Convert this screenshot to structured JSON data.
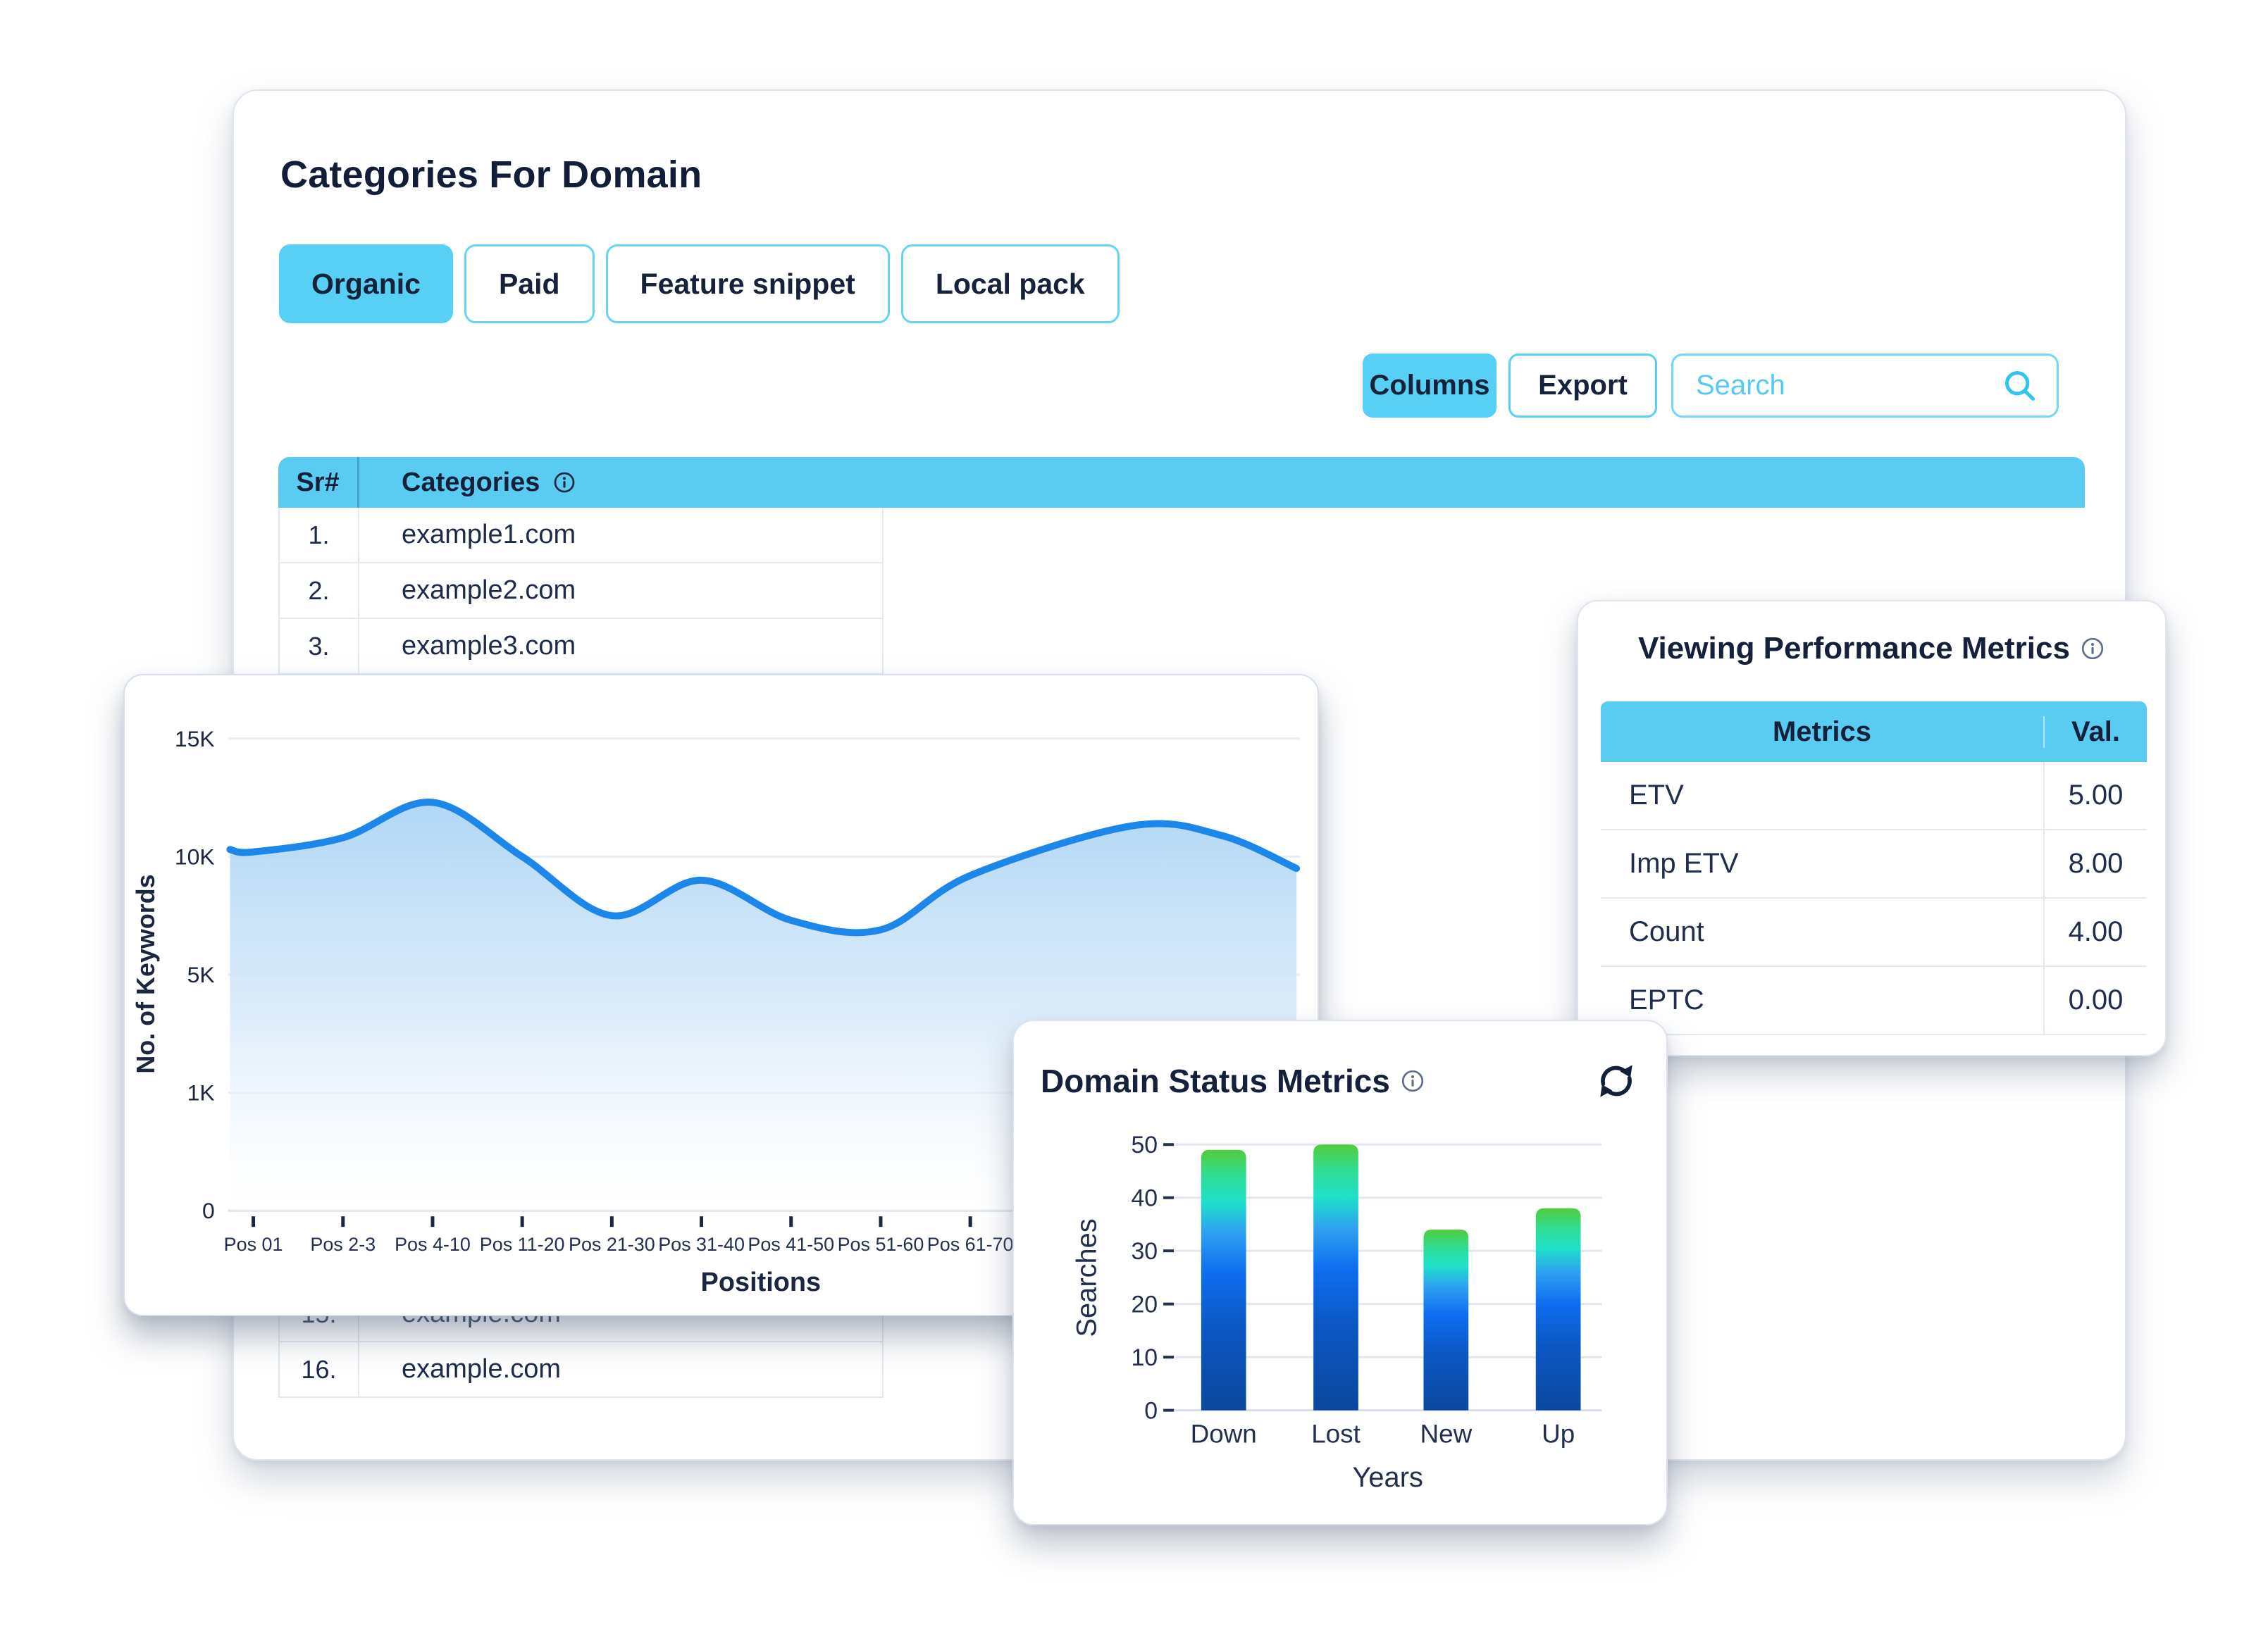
{
  "page": {
    "background": "#ffffff"
  },
  "main_card": {
    "title": "Categories For Domain",
    "tabs": [
      {
        "label": "Organic",
        "active": true
      },
      {
        "label": "Paid",
        "active": false
      },
      {
        "label": "Feature snippet",
        "active": false
      },
      {
        "label": "Local pack",
        "active": false
      }
    ],
    "toolbar": {
      "columns_label": "Columns",
      "export_label": "Export",
      "search_placeholder": "Search",
      "search_value": ""
    },
    "table": {
      "columns": [
        "Sr#",
        "Categories"
      ],
      "header_info_icon": "info-icon",
      "rows": [
        {
          "sr": "1.",
          "category": "example1.com"
        },
        {
          "sr": "2.",
          "category": "example2.com"
        },
        {
          "sr": "3.",
          "category": "example3.com"
        },
        {
          "sr": "",
          "category": ""
        },
        {
          "sr": "",
          "category": ""
        },
        {
          "sr": "",
          "category": ""
        },
        {
          "sr": "",
          "category": ""
        },
        {
          "sr": "",
          "category": ""
        },
        {
          "sr": "",
          "category": ""
        },
        {
          "sr": "",
          "category": ""
        },
        {
          "sr": "",
          "category": ""
        },
        {
          "sr": "",
          "category": ""
        },
        {
          "sr": "",
          "category": ""
        },
        {
          "sr": "",
          "category": ""
        },
        {
          "sr": "15.",
          "category": "example.com"
        },
        {
          "sr": "16.",
          "category": "example.com"
        }
      ]
    }
  },
  "performance_card": {
    "title": "Viewing Performance Metrics",
    "title_info_icon": "info-icon",
    "table": {
      "columns": [
        "Metrics",
        "Val."
      ],
      "rows": [
        {
          "metric": "ETV",
          "value": "5.00"
        },
        {
          "metric": "Imp ETV",
          "value": "8.00"
        },
        {
          "metric": "Count",
          "value": "4.00"
        },
        {
          "metric": "EPTC",
          "value": "0.00"
        }
      ]
    }
  },
  "status_card": {
    "title": "Domain Status Metrics",
    "title_info_icon": "info-icon",
    "refresh_icon": "refresh-icon"
  },
  "chart_data": [
    {
      "type": "area",
      "title": "",
      "xlabel": "Positions",
      "ylabel": "No. of Keywords",
      "categories": [
        "Pos 01",
        "Pos 2-3",
        "Pos 4-10",
        "Pos 11-20",
        "Pos 21-30",
        "Pos 31-40",
        "Pos 41-50",
        "Pos 51-60",
        "Pos 61-70"
      ],
      "values_k": [
        10.2,
        10.8,
        12.3,
        10.0,
        7.5,
        9.0,
        7.3,
        6.9,
        9.2
      ],
      "lead_point": {
        "idx": -0.26,
        "value_k": 10.3
      },
      "overflow_points": [
        {
          "idx": 9.8,
          "value_k": 11.3
        },
        {
          "idx": 10.8,
          "value_k": 10.9
        },
        {
          "idx": 11.64,
          "value_k": 9.5
        }
      ],
      "y_axis": {
        "tick_labels": [
          "0",
          "1K",
          "5K",
          "10K",
          "15K"
        ],
        "gridline_values_k": [
          0,
          1,
          5,
          10,
          15
        ]
      },
      "grid": true,
      "legend": false,
      "line_color": "#1C87E8",
      "fill_gradient": [
        "#A6D2F4",
        "#D5E8FA",
        "#FFFFFF"
      ]
    },
    {
      "type": "bar",
      "title": "",
      "xlabel": "Years",
      "ylabel": "Searches",
      "categories": [
        "Down",
        "Lost",
        "New",
        "Up"
      ],
      "values": [
        49,
        50,
        34,
        38
      ],
      "ylim": [
        0,
        50
      ],
      "y_ticks": [
        0,
        10,
        20,
        30,
        40,
        50
      ],
      "grid": true,
      "legend": false,
      "bar_gradient": [
        "#53CB3D",
        "#2FDD95",
        "#1FE0C9",
        "#2E9FF2",
        "#0E6EF0",
        "#0C57C4",
        "#0B489E"
      ]
    }
  ],
  "colors": {
    "accent_cyan": "#58CFF5",
    "table_header_cyan": "#5ACBF1",
    "dark_navy_text": "#16213A",
    "row_border": "#E3E8F1",
    "line_chart_line": "#1C87E8",
    "line_chart_fill_top": "#A6D2F4",
    "bar_gradient_top": "#53CB3D",
    "bar_gradient_bottom": "#0B489E"
  }
}
